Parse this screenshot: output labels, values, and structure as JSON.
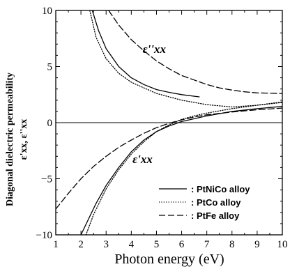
{
  "chart_data": {
    "type": "line",
    "xlabel": "Photon energy (eV)",
    "ylabel_lines": [
      "Diagonal dielectric permeability",
      "ε'xx, ε''xx"
    ],
    "xlim": [
      1,
      10
    ],
    "ylim": [
      -10,
      10
    ],
    "xticks": [
      1,
      2,
      3,
      4,
      5,
      6,
      7,
      8,
      9,
      10
    ],
    "yticks": [
      -10,
      -5,
      0,
      5,
      10
    ],
    "legend_position": "bottom-right",
    "annotations": [
      {
        "text": "ε''xx",
        "x": 4.45,
        "y": 6.2
      },
      {
        "text": "ε'xx",
        "x": 4.05,
        "y": -3.6
      }
    ],
    "series": [
      {
        "name": ": PtNiCo alloy",
        "style": "solid",
        "part": "real",
        "points": [
          [
            2.0,
            -10
          ],
          [
            2.3,
            -8.6
          ],
          [
            2.6,
            -7.2
          ],
          [
            3.0,
            -5.6
          ],
          [
            3.5,
            -4.0
          ],
          [
            4.0,
            -2.6
          ],
          [
            4.5,
            -1.55
          ],
          [
            5.0,
            -0.8
          ],
          [
            5.5,
            -0.3
          ],
          [
            6.0,
            0.1
          ],
          [
            6.5,
            0.35
          ],
          [
            7.0,
            0.6
          ],
          [
            7.5,
            0.8
          ],
          [
            8.0,
            1.0
          ],
          [
            9.0,
            1.25
          ],
          [
            10.0,
            1.45
          ]
        ]
      },
      {
        "name": ": PtNiCo alloy",
        "style": "solid",
        "part": "imag",
        "points": [
          [
            2.45,
            10
          ],
          [
            2.7,
            8.2
          ],
          [
            3.0,
            6.6
          ],
          [
            3.5,
            5.0
          ],
          [
            4.0,
            4.0
          ],
          [
            4.5,
            3.4
          ],
          [
            5.0,
            2.95
          ],
          [
            5.5,
            2.7
          ],
          [
            6.0,
            2.5
          ],
          [
            6.7,
            2.3
          ]
        ]
      },
      {
        "name": ": PtCo alloy",
        "style": "dotted",
        "part": "real",
        "points": [
          [
            2.2,
            -10
          ],
          [
            2.5,
            -8.2
          ],
          [
            3.0,
            -5.9
          ],
          [
            3.5,
            -4.2
          ],
          [
            4.0,
            -2.8
          ],
          [
            4.5,
            -1.7
          ],
          [
            5.0,
            -0.8
          ],
          [
            5.5,
            -0.2
          ],
          [
            6.0,
            0.3
          ],
          [
            6.5,
            0.6
          ],
          [
            7.0,
            0.85
          ],
          [
            7.5,
            1.05
          ],
          [
            8.0,
            1.25
          ],
          [
            9.0,
            1.55
          ],
          [
            10.0,
            1.8
          ]
        ]
      },
      {
        "name": ": PtCo alloy",
        "style": "dotted",
        "part": "imag",
        "points": [
          [
            2.35,
            10
          ],
          [
            2.6,
            7.6
          ],
          [
            3.0,
            5.7
          ],
          [
            3.5,
            4.4
          ],
          [
            4.0,
            3.6
          ],
          [
            4.5,
            3.1
          ],
          [
            5.0,
            2.6
          ],
          [
            6.0,
            2.0
          ],
          [
            7.0,
            1.6
          ],
          [
            8.0,
            1.4
          ],
          [
            9.0,
            1.55
          ],
          [
            10.0,
            1.85
          ]
        ]
      },
      {
        "name": ": PtFe alloy",
        "style": "dashed",
        "part": "real",
        "points": [
          [
            1.0,
            -7.7
          ],
          [
            1.5,
            -6.3
          ],
          [
            2.0,
            -5.0
          ],
          [
            2.5,
            -3.9
          ],
          [
            3.0,
            -3.0
          ],
          [
            3.5,
            -2.2
          ],
          [
            4.0,
            -1.55
          ],
          [
            4.5,
            -0.95
          ],
          [
            5.0,
            -0.45
          ],
          [
            5.5,
            -0.05
          ],
          [
            6.0,
            0.25
          ],
          [
            6.5,
            0.5
          ],
          [
            7.0,
            0.7
          ],
          [
            8.0,
            0.95
          ],
          [
            9.0,
            1.15
          ],
          [
            10.0,
            1.3
          ]
        ]
      },
      {
        "name": ": PtFe alloy",
        "style": "dashed",
        "part": "imag",
        "points": [
          [
            3.1,
            10
          ],
          [
            3.5,
            8.7
          ],
          [
            4.0,
            7.4
          ],
          [
            4.5,
            6.4
          ],
          [
            5.0,
            5.5
          ],
          [
            5.5,
            4.8
          ],
          [
            6.0,
            4.2
          ],
          [
            6.5,
            3.8
          ],
          [
            7.0,
            3.4
          ],
          [
            7.5,
            3.1
          ],
          [
            8.0,
            2.9
          ],
          [
            8.5,
            2.75
          ],
          [
            9.0,
            2.65
          ],
          [
            10.0,
            2.6
          ]
        ]
      }
    ]
  }
}
